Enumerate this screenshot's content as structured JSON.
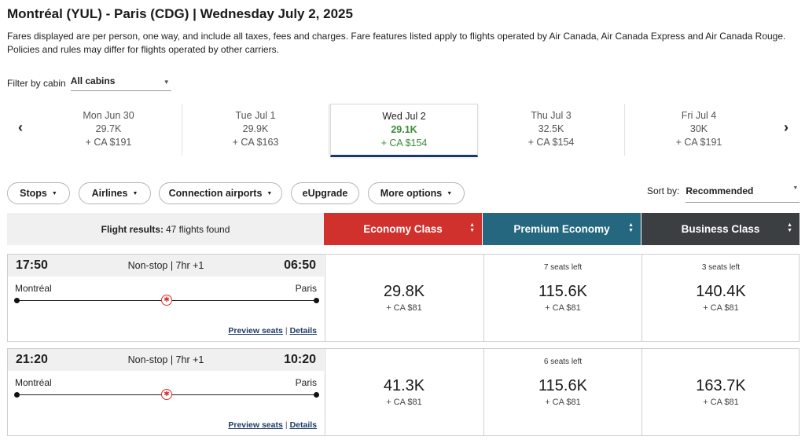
{
  "header": {
    "title": "Montréal (YUL) - Paris (CDG)  |  Wednesday July 2, 2025",
    "fare_note": "Fares displayed are per person, one way, and include all taxes, fees and charges. Fare features listed apply to flights operated by Air Canada, Air Canada Express and Air Canada Rouge. Policies and rules may differ for flights operated by other carriers."
  },
  "filter": {
    "label": "Filter by cabin",
    "value": "All cabins"
  },
  "date_nav": {
    "prev_icon": "‹",
    "next_icon": "›",
    "dates": [
      {
        "day": "Mon Jun 30",
        "points": "29.7K",
        "cash": "+ CA $191",
        "selected": false
      },
      {
        "day": "Tue Jul 1",
        "points": "29.9K",
        "cash": "+ CA $163",
        "selected": false
      },
      {
        "day": "Wed Jul 2",
        "points": "29.1K",
        "cash": "+ CA $154",
        "selected": true
      },
      {
        "day": "Thu Jul 3",
        "points": "32.5K",
        "cash": "+ CA $154",
        "selected": false
      },
      {
        "day": "Fri Jul 4",
        "points": "30K",
        "cash": "+ CA $191",
        "selected": false
      }
    ]
  },
  "filters_bar": {
    "stops": "Stops",
    "airlines": "Airlines",
    "connection_airports": "Connection airports",
    "eupgrade": "eUpgrade",
    "more_options": "More options"
  },
  "sort": {
    "label": "Sort by:",
    "value": "Recommended"
  },
  "results": {
    "label": "Flight results:",
    "count_text": "47 flights found",
    "cabins": [
      {
        "name": "Economy Class",
        "color": "#d0312d"
      },
      {
        "name": "Premium Economy",
        "color": "#25677f"
      },
      {
        "name": "Business Class",
        "color": "#3c3f42"
      }
    ]
  },
  "flights": [
    {
      "depart": "17:50",
      "arrive": "06:50",
      "duration": "Non-stop | 7hr +1",
      "from": "Montréal",
      "to": "Paris",
      "preview_seats": "Preview seats",
      "details": "Details",
      "fares": [
        {
          "seats": "",
          "points": "29.8K",
          "cash": "+ CA $81"
        },
        {
          "seats": "7 seats left",
          "points": "115.6K",
          "cash": "+ CA $81"
        },
        {
          "seats": "3 seats left",
          "points": "140.4K",
          "cash": "+ CA $81"
        }
      ]
    },
    {
      "depart": "21:20",
      "arrive": "10:20",
      "duration": "Non-stop | 7hr +1",
      "from": "Montréal",
      "to": "Paris",
      "preview_seats": "Preview seats",
      "details": "Details",
      "fares": [
        {
          "seats": "",
          "points": "41.3K",
          "cash": "+ CA $81"
        },
        {
          "seats": "6 seats left",
          "points": "115.6K",
          "cash": "+ CA $81"
        },
        {
          "seats": "",
          "points": "163.7K",
          "cash": "+ CA $81"
        }
      ]
    }
  ],
  "icons": {
    "airline_logo": "maple-leaf-icon",
    "logo_glyph": "✱",
    "caret": "▼",
    "sort_up": "▲",
    "sort_down": "▼"
  }
}
